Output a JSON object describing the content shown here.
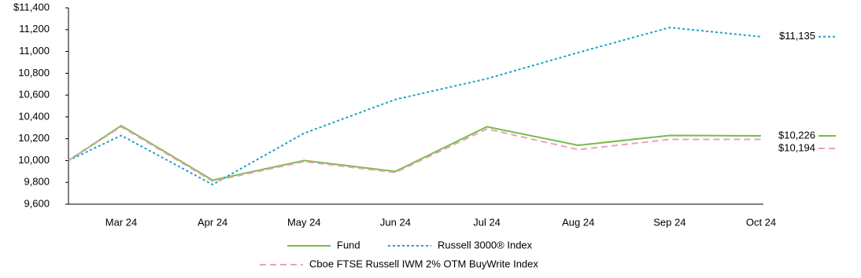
{
  "chart_data": {
    "type": "line",
    "categories": [
      null,
      "Mar 24",
      "Apr 24",
      "May 24",
      "Jun 24",
      "Jul 24",
      "Aug 24",
      "Sep 24",
      "Oct 24"
    ],
    "series": [
      {
        "name": "Fund",
        "color": "#77bc43",
        "style": "solid",
        "values": [
          10000,
          10320,
          9820,
          10000,
          9900,
          10310,
          10140,
          10230,
          10226
        ],
        "value_labels": [
          null,
          null,
          null,
          null,
          null,
          null,
          null,
          null,
          "$10,226"
        ]
      },
      {
        "name": "Russell 3000® Index",
        "color": "#1ba3c6",
        "style": "dotted",
        "values": [
          10000,
          10230,
          9780,
          10250,
          10560,
          10750,
          10990,
          11220,
          11135
        ],
        "value_labels": [
          null,
          null,
          null,
          null,
          null,
          null,
          null,
          null,
          "$11,135"
        ]
      },
      {
        "name": "Cboe FTSE Russell IWM 2% OTM BuyWrite Index",
        "color": "#e9a1c0",
        "style": "dashed",
        "values": [
          10000,
          10310,
          9810,
          9990,
          9890,
          10290,
          10100,
          10194,
          10194
        ],
        "value_labels": [
          null,
          null,
          null,
          null,
          null,
          null,
          null,
          null,
          "$10,194"
        ]
      }
    ],
    "ylim": [
      9600,
      11400
    ],
    "yticks": [
      {
        "value": 9600,
        "label": "9,600"
      },
      {
        "value": 9800,
        "label": "9,800"
      },
      {
        "value": 10000,
        "label": "10,000"
      },
      {
        "value": 10200,
        "label": "10,200"
      },
      {
        "value": 10400,
        "label": "10,400"
      },
      {
        "value": 10600,
        "label": "10,600"
      },
      {
        "value": 10800,
        "label": "10,800"
      },
      {
        "value": 11000,
        "label": "11,000"
      },
      {
        "value": 11200,
        "label": "11,200"
      },
      {
        "value": 11400,
        "label": "$11,400"
      }
    ],
    "grid": false,
    "legend": "bottom"
  }
}
